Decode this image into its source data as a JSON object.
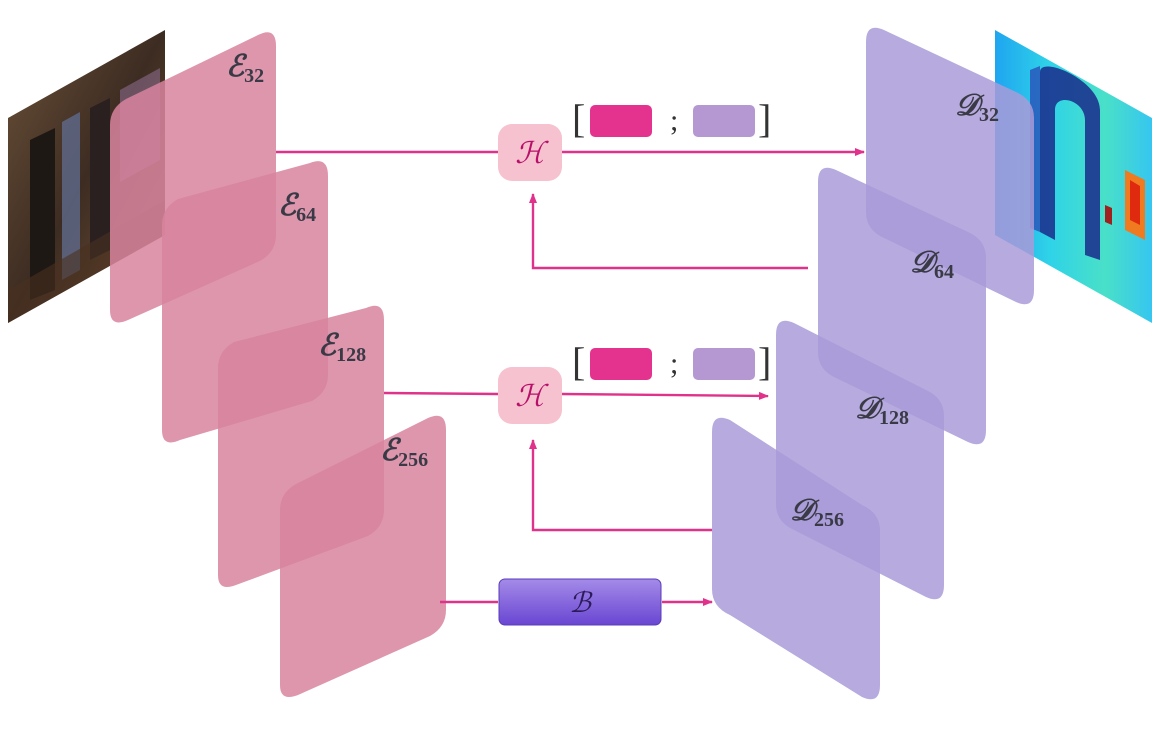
{
  "colors": {
    "encoder": "#d8849f",
    "decoder": "#a99bd8",
    "arrow": "#e0328a",
    "h_box": "#f6c2cf",
    "b_box": "#7a5ad8",
    "swatch_encoder": "#e4338f",
    "swatch_decoder": "#b597d2"
  },
  "encoder": [
    {
      "letter": "ℰ",
      "sub": "32"
    },
    {
      "letter": "ℰ",
      "sub": "64"
    },
    {
      "letter": "ℰ",
      "sub": "128"
    },
    {
      "letter": "ℰ",
      "sub": "256"
    }
  ],
  "decoder": [
    {
      "letter": "𝒟",
      "sub": "32"
    },
    {
      "letter": "𝒟",
      "sub": "64"
    },
    {
      "letter": "𝒟",
      "sub": "128"
    },
    {
      "letter": "𝒟",
      "sub": "256"
    }
  ],
  "fusion": [
    {
      "symbol": "ℋ",
      "open": "[",
      "sep": ";",
      "close": "]"
    },
    {
      "symbol": "ℋ",
      "open": "[",
      "sep": ";",
      "close": "]"
    }
  ],
  "bottleneck": {
    "symbol": "ℬ"
  },
  "input_image": {
    "icon": "panorama-photo"
  },
  "output_image": {
    "icon": "depth-map"
  }
}
